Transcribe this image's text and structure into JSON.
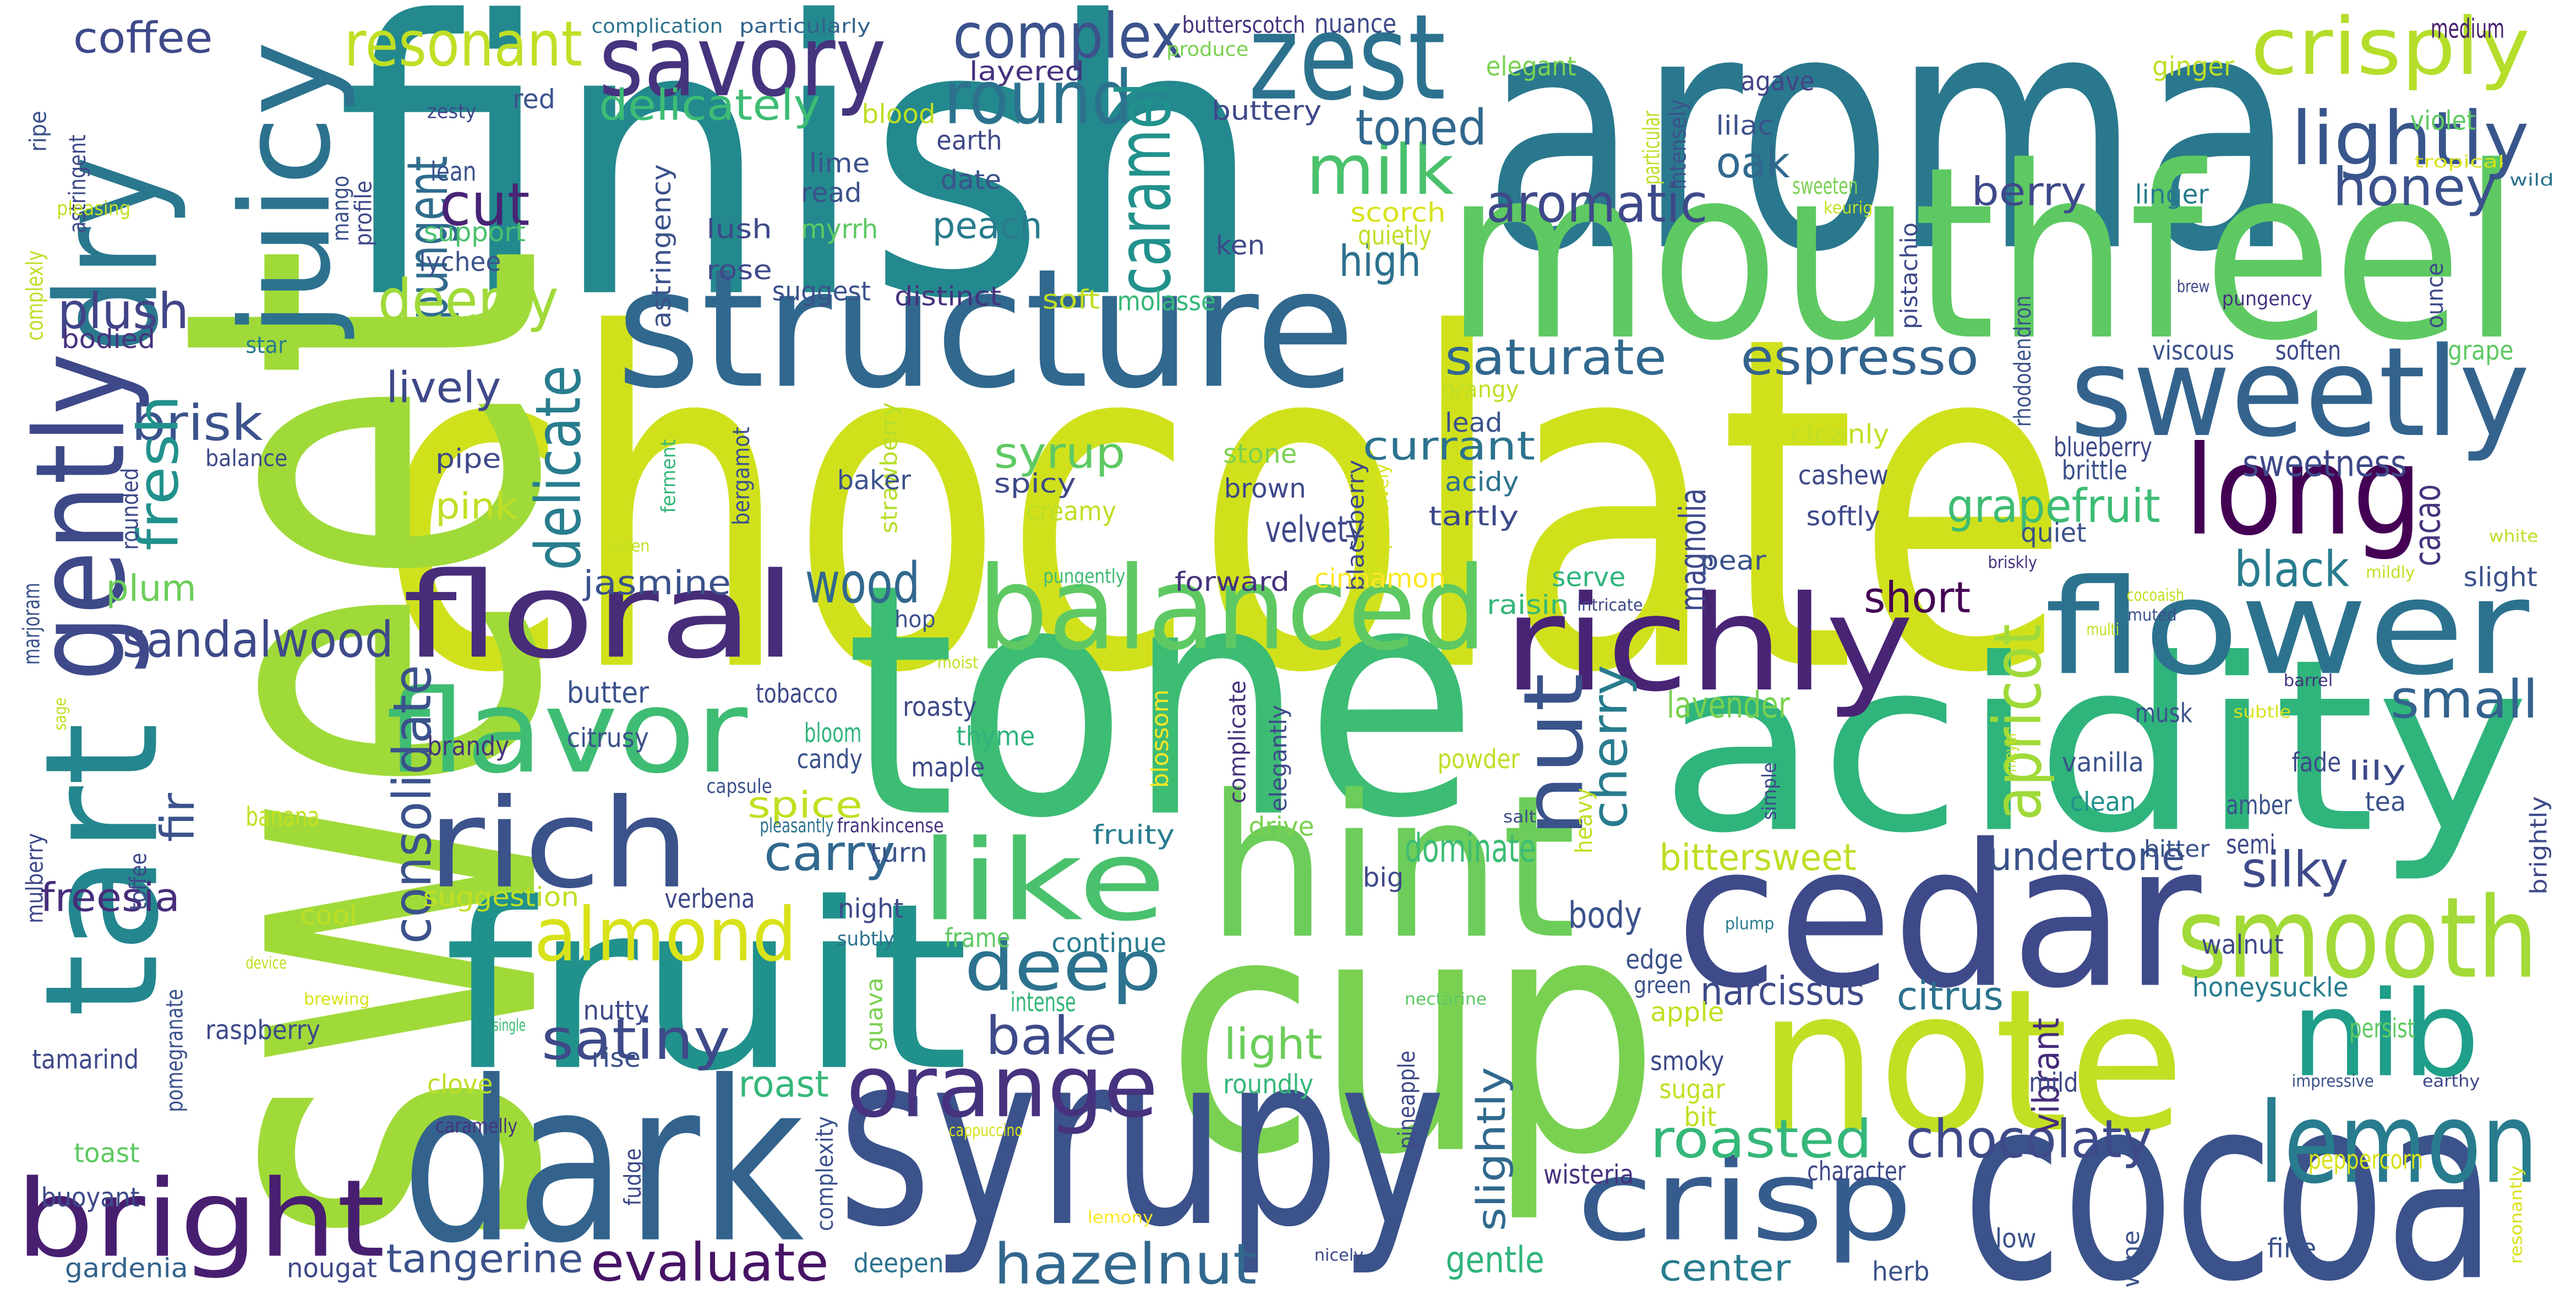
{
  "words": [
    "finish",
    "aroma",
    "chocolate",
    "sweet",
    "tone",
    "cup",
    "mouthfeel",
    "acidity",
    "syrupy",
    "fruit",
    "dark",
    "cedar",
    "hint",
    "note",
    "cocoa",
    "structure",
    "dry",
    "gently",
    "tart",
    "juicy",
    "savory",
    "zest",
    "crisply",
    "lightly",
    "sweetly",
    "long",
    "flower",
    "richly",
    "balanced",
    "floral",
    "flavor",
    "rich",
    "like",
    "almond",
    "smooth",
    "nib",
    "lemon",
    "crisp",
    "orange",
    "bright",
    "round",
    "complex",
    "caramel",
    "milk",
    "toned",
    "resonant",
    "coffee",
    "delicately",
    "pungent",
    "cut",
    "deeply",
    "plush",
    "brisk",
    "fresh",
    "sandalwood",
    "delicate",
    "consolidate",
    "lively",
    "nut",
    "aromatic",
    "saturate",
    "espresso",
    "high",
    "oak",
    "honey",
    "berry",
    "wood",
    "jasmine",
    "plum",
    "fir",
    "freesia",
    "deep",
    "bake",
    "satiny",
    "roast",
    "evaluate",
    "tangerine",
    "hazelnut",
    "carry",
    "spice",
    "syrup",
    "pink",
    "currant",
    "velvety",
    "cherry",
    "dominate",
    "body",
    "narcissus",
    "roasted",
    "chocolaty",
    "grapefruit",
    "black",
    "small",
    "apricot",
    "lavender",
    "silky",
    "undertone",
    "bittersweet",
    "citrus",
    "vibrant",
    "short",
    "sweetness",
    "cacao",
    "slightly",
    "gentle",
    "center",
    "light",
    "magnolia",
    "lilac",
    "agave",
    "elegant",
    "nuance",
    "butterscotch",
    "produce",
    "layered",
    "complication",
    "particularly",
    "medium",
    "ginger",
    "violet",
    "tropical",
    "wild",
    "linger",
    "sweeten",
    "keurig",
    "particular",
    "intensely",
    "blood",
    "mango",
    "profile",
    "earth",
    "lime",
    "read",
    "date",
    "buttery",
    "lush",
    "myrrh",
    "peach",
    "ken",
    "rose",
    "suggest",
    "distinct",
    "soft",
    "molasse",
    "scorch",
    "quietly",
    "astringency",
    "astringent",
    "ripe",
    "red",
    "zesty",
    "lean",
    "support",
    "lychee",
    "pleasing",
    "complexly",
    "bodied",
    "star",
    "balance",
    "rounded",
    "marjoram",
    "pipe",
    "bergamot",
    "ferment",
    "laden",
    "strawberry",
    "stone",
    "brown",
    "spicy",
    "baker",
    "creamy",
    "blackberry",
    "impressively",
    "lead",
    "acidy",
    "tartly",
    "orangy",
    "cleanly",
    "cashew",
    "softly",
    "quiet",
    "pear",
    "serve",
    "raisin",
    "intricate",
    "cinnamon",
    "forward",
    "pungently",
    "hop",
    "moist",
    "roasty",
    "thyme",
    "maple",
    "blossom",
    "complicate",
    "elegantly",
    "tobacco",
    "bloom",
    "candy",
    "capsule",
    "citrusy",
    "brandy",
    "butter",
    "pleasantly",
    "frankincense",
    "turn",
    "fruity",
    "drive",
    "big",
    "night",
    "subtly",
    "frame",
    "continue",
    "intense",
    "verbena",
    "suggestion",
    "cool",
    "device",
    "brewing",
    "raspberry",
    "pomegranate",
    "single",
    "nutty",
    "rise",
    "guava",
    "clove",
    "tamarind",
    "toast",
    "buoyant",
    "caramelly",
    "fudge",
    "complexity",
    "deepen",
    "cappuccino",
    "lemony",
    "nougat",
    "gardenia",
    "roundly",
    "pineapple",
    "nectarine",
    "powder",
    "heavy",
    "salt",
    "edge",
    "green",
    "apple",
    "smoky",
    "sugar",
    "bit",
    "wisteria",
    "character",
    "herb",
    "low",
    "wine",
    "fine",
    "nicely",
    "mild",
    "peppercorn",
    "impressive",
    "earthy",
    "resonantly",
    "persist",
    "honeysuckle",
    "walnut",
    "semi",
    "bitter",
    "amber",
    "musk",
    "subtle",
    "barrel",
    "vanilla",
    "clean",
    "fade",
    "lily",
    "tea",
    "brightly",
    "meyer",
    "simple",
    "plump",
    "slight",
    "mildly",
    "multi",
    "muted",
    "cocoaish",
    "briskly",
    "white",
    "blueberry",
    "brittle",
    "viscous",
    "soften",
    "grape",
    "brew",
    "pungency",
    "ounce",
    "pistachio",
    "rhododendron",
    "sage",
    "mulberry",
    "toffee",
    "banana"
  ]
}
